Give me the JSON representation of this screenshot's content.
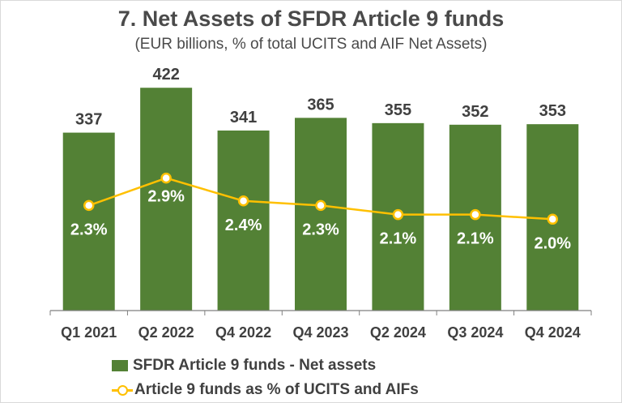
{
  "colors": {
    "bar": "#538135",
    "line": "#ffc000",
    "axis": "#7f7f7f",
    "text": "#404040"
  },
  "chart_data": {
    "type": "bar",
    "title": "7. Net Assets of SFDR Article 9 funds",
    "subtitle": "(EUR billions, % of total UCITS and AIF Net Assets)",
    "categories": [
      "Q1 2021",
      "Q2 2022",
      "Q4 2022",
      "Q4 2023",
      "Q2 2024",
      "Q3 2024",
      "Q4 2024"
    ],
    "series": [
      {
        "name": "SFDR Article 9 funds - Net assets",
        "type": "bar",
        "values": [
          337,
          422,
          341,
          365,
          355,
          352,
          353
        ]
      },
      {
        "name": "Article 9 funds as % of UCITS and AIFs",
        "type": "line",
        "values": [
          2.3,
          2.9,
          2.4,
          2.3,
          2.1,
          2.1,
          2.0
        ],
        "labels": [
          "2.3%",
          "2.9%",
          "2.4%",
          "2.3%",
          "2.1%",
          "2.1%",
          "2.0%"
        ]
      }
    ],
    "bar_ylim": [
      0,
      450
    ],
    "line_ylim": [
      0,
      5.2
    ],
    "grid": false,
    "legend_position": "bottom"
  }
}
